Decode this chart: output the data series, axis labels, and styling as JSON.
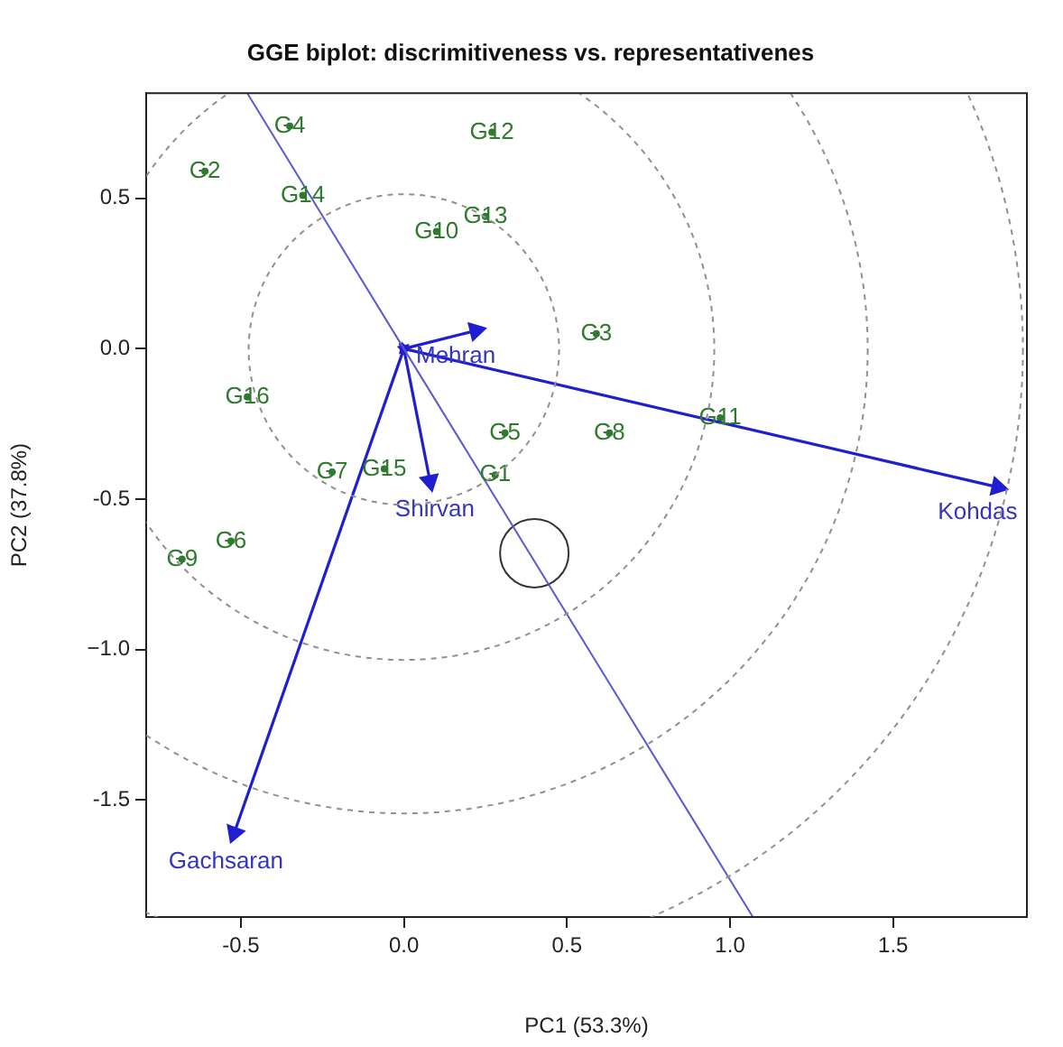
{
  "chart_data": {
    "type": "scatter",
    "title": "GGE biplot: discrimitiveness vs. representativenes",
    "xlabel": "PC1 (53.3%)",
    "ylabel": "PC2 (37.8%)",
    "xlim": [
      -0.79,
      1.91
    ],
    "ylim": [
      -1.89,
      0.85
    ],
    "xticks": [
      -0.5,
      {
        "value": 0,
        "label": "0.0"
      },
      0.5,
      {
        "value": 1,
        "label": "1.0"
      },
      1.5
    ],
    "yticks": [
      -1.5,
      {
        "value": -1,
        "label": "−1.0"
      },
      -0.5,
      {
        "value": 0,
        "label": "0.0"
      },
      0.5
    ],
    "grid": false,
    "legend": false,
    "series": [
      {
        "type": "line",
        "line_style": "solid",
        "marker": "none",
        "color": "#5a5ad2",
        "x": [
          -0.48,
          0,
          1.07
        ],
        "values": [
          0.85,
          0,
          -1.89
        ]
      },
      {
        "type": "line",
        "name": "Mehran",
        "line_style": "solid",
        "marker": "triangle",
        "color": "#1f1fd0",
        "x": [
          0,
          0.22
        ],
        "values": [
          0,
          0.06
        ]
      },
      {
        "type": "line",
        "name": "Shirvan",
        "line_style": "solid",
        "marker": "triangle",
        "color": "#1f1fd0",
        "x": [
          0,
          0.08
        ],
        "values": [
          0,
          -0.44
        ]
      },
      {
        "type": "line",
        "name": "Kohdas",
        "line_style": "solid",
        "marker": "triangle",
        "color": "#1f1fd0",
        "x": [
          0,
          1.82
        ],
        "values": [
          0,
          -0.46
        ]
      },
      {
        "type": "line",
        "name": "Gachsaran",
        "line_style": "solid",
        "marker": "triangle",
        "color": "#1f1fd0",
        "x": [
          0,
          -0.52
        ],
        "values": [
          0,
          -1.61
        ]
      },
      {
        "marker": "circle",
        "color": "#333333",
        "x": [
          0.4
        ],
        "values": [
          -0.68
        ]
      },
      {
        "marker": "circle",
        "color": "#2f7a2f",
        "x": [
          0.28,
          -0.61,
          0.59,
          -0.35,
          0.31,
          -0.53,
          -0.22,
          0.63,
          -0.68,
          0.1,
          0.97,
          0.27,
          0.25,
          -0.31,
          -0.06,
          -0.48
        ],
        "values": [
          -0.42,
          0.59,
          0.05,
          0.74,
          -0.28,
          -0.64,
          -0.41,
          -0.28,
          -0.7,
          0.39,
          -0.23,
          0.72,
          0.44,
          0.51,
          -0.4,
          -0.16
        ],
        "value_labels": [
          "G1",
          "G2",
          "G3",
          "G4",
          "G5",
          "G6",
          "G7",
          "G8",
          "G9",
          "G10",
          "G11",
          "G12",
          "G13",
          "G14",
          "G15",
          "G16"
        ]
      }
    ]
  }
}
